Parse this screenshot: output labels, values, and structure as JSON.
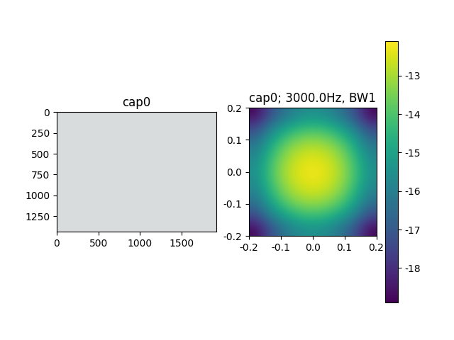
{
  "chart_data": [
    {
      "type": "image",
      "title": "cap0",
      "xlim": [
        0,
        1920
      ],
      "ylim": [
        1440,
        0
      ],
      "xticks": [
        0,
        500,
        1000,
        1500
      ],
      "yticks": [
        0,
        250,
        500,
        750,
        1000,
        1250
      ]
    },
    {
      "type": "heatmap",
      "title": "cap0; 3000.0Hz, BW1",
      "xlim": [
        -0.2,
        0.2
      ],
      "ylim": [
        -0.2,
        0.2
      ],
      "xticks": [
        -0.2,
        -0.1,
        0.0,
        0.1,
        0.2
      ],
      "yticks": [
        -0.2,
        -0.1,
        0.0,
        0.1,
        0.2
      ],
      "cells": [
        [
          -18.8,
          -17.3,
          -16.3,
          -15.7,
          -15.5,
          -15.7,
          -16.3,
          -17.3,
          -18.8
        ],
        [
          -17.3,
          -15.9,
          -14.9,
          -14.3,
          -14.1,
          -14.3,
          -14.9,
          -15.9,
          -17.3
        ],
        [
          -16.3,
          -14.9,
          -13.8,
          -13.2,
          -13.0,
          -13.2,
          -13.8,
          -14.9,
          -16.3
        ],
        [
          -15.7,
          -14.3,
          -13.2,
          -12.6,
          -12.4,
          -12.6,
          -13.2,
          -14.3,
          -15.7
        ],
        [
          -15.5,
          -14.1,
          -13.0,
          -12.4,
          -12.2,
          -12.4,
          -13.0,
          -14.1,
          -15.5
        ],
        [
          -15.7,
          -14.3,
          -13.2,
          -12.6,
          -12.4,
          -12.6,
          -13.2,
          -14.3,
          -15.7
        ],
        [
          -16.3,
          -14.9,
          -13.8,
          -13.2,
          -13.0,
          -13.2,
          -13.8,
          -14.9,
          -16.3
        ],
        [
          -17.3,
          -15.9,
          -14.9,
          -14.3,
          -14.1,
          -14.3,
          -14.9,
          -15.9,
          -17.3
        ],
        [
          -18.8,
          -17.3,
          -16.3,
          -15.7,
          -15.5,
          -15.7,
          -16.3,
          -17.3,
          -18.8
        ]
      ],
      "colorbar_range": [
        -18.9,
        -12.1
      ],
      "colorbar_ticks": [
        -18,
        -17,
        -16,
        -15,
        -14,
        -13
      ]
    }
  ]
}
